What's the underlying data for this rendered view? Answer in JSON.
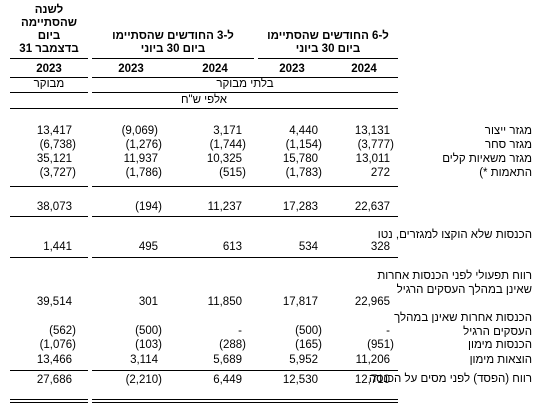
{
  "headers": {
    "annual": [
      "לשנה",
      "שהסתיימה",
      "ביום",
      "31 בדצמבר"
    ],
    "three_months": [
      "ל-3 החודשים שהסתיימו",
      "ביום 30 ביוני"
    ],
    "six_months": [
      "ל-6 החודשים שהסתיימו",
      "ביום 30 ביוני"
    ],
    "years": {
      "c1": "2023",
      "c2": "2023",
      "c3": "2024",
      "c4": "2023",
      "c5": "2024"
    },
    "audited": "מבוקר",
    "unaudited": "בלתי מבוקר",
    "unit": "אלפי ש\"ח"
  },
  "rows": {
    "production": {
      "label": "מגזר ייצור",
      "c1": "13,417",
      "c2": "(9,069)",
      "c3": "3,171",
      "c4": "4,440",
      "c5": "13,131"
    },
    "trade": {
      "label": "מגזר סחר",
      "c1": "(6,738)",
      "c2": "(1,276)",
      "c3": "(1,744)",
      "c4": "(1,154)",
      "c5": "(3,777)"
    },
    "light_vehicles": {
      "label": "מגזר משאיות קלים",
      "c1": "35,121",
      "c2": "11,937",
      "c3": "10,325",
      "c4": "15,780",
      "c5": "13,011"
    },
    "adjustments": {
      "label": "התאמות *)",
      "c1": "(3,727)",
      "c2": "(1,786)",
      "c3": "(515)",
      "c4": "(1,783)",
      "c5": "272"
    },
    "subtotal": {
      "label": "",
      "c1": "38,073",
      "c2": "(194)",
      "c3": "11,237",
      "c4": "17,283",
      "c5": "22,637"
    },
    "unallocated": {
      "label": "הכנסות שלא הוקצו למגזרים, נטו",
      "c1": "1,441",
      "c2": "495",
      "c3": "613",
      "c4": "534",
      "c5": "328"
    },
    "operating": {
      "label": "רווח תפעולי לפני הכנסות אחרות שאינן במהלך העסקים הרגיל",
      "c1": "39,514",
      "c2": "301",
      "c3": "11,850",
      "c4": "17,817",
      "c5": "22,965"
    },
    "other_income": {
      "label": "הכנסות אחרות שאינן במהלך העסקים הרגיל",
      "c1": "(562)",
      "c2": "(500)",
      "c3": "-",
      "c4": "(500)",
      "c5": "-"
    },
    "finance_income": {
      "label": "הכנסות מימון",
      "c1": "(1,076)",
      "c2": "(103)",
      "c3": "(288)",
      "c4": "(165)",
      "c5": "(951)"
    },
    "finance_expenses": {
      "label": "הוצאות מימון",
      "c1": "13,466",
      "c2": "3,114",
      "c3": "5,689",
      "c4": "5,952",
      "c5": "11,206"
    },
    "pretax": {
      "label": "רווח (הפסד) לפני מסים על הכנסה",
      "c1": "27,686",
      "c2": "(2,210)",
      "c3": "6,449",
      "c4": "12,530",
      "c5": "12,710"
    }
  }
}
